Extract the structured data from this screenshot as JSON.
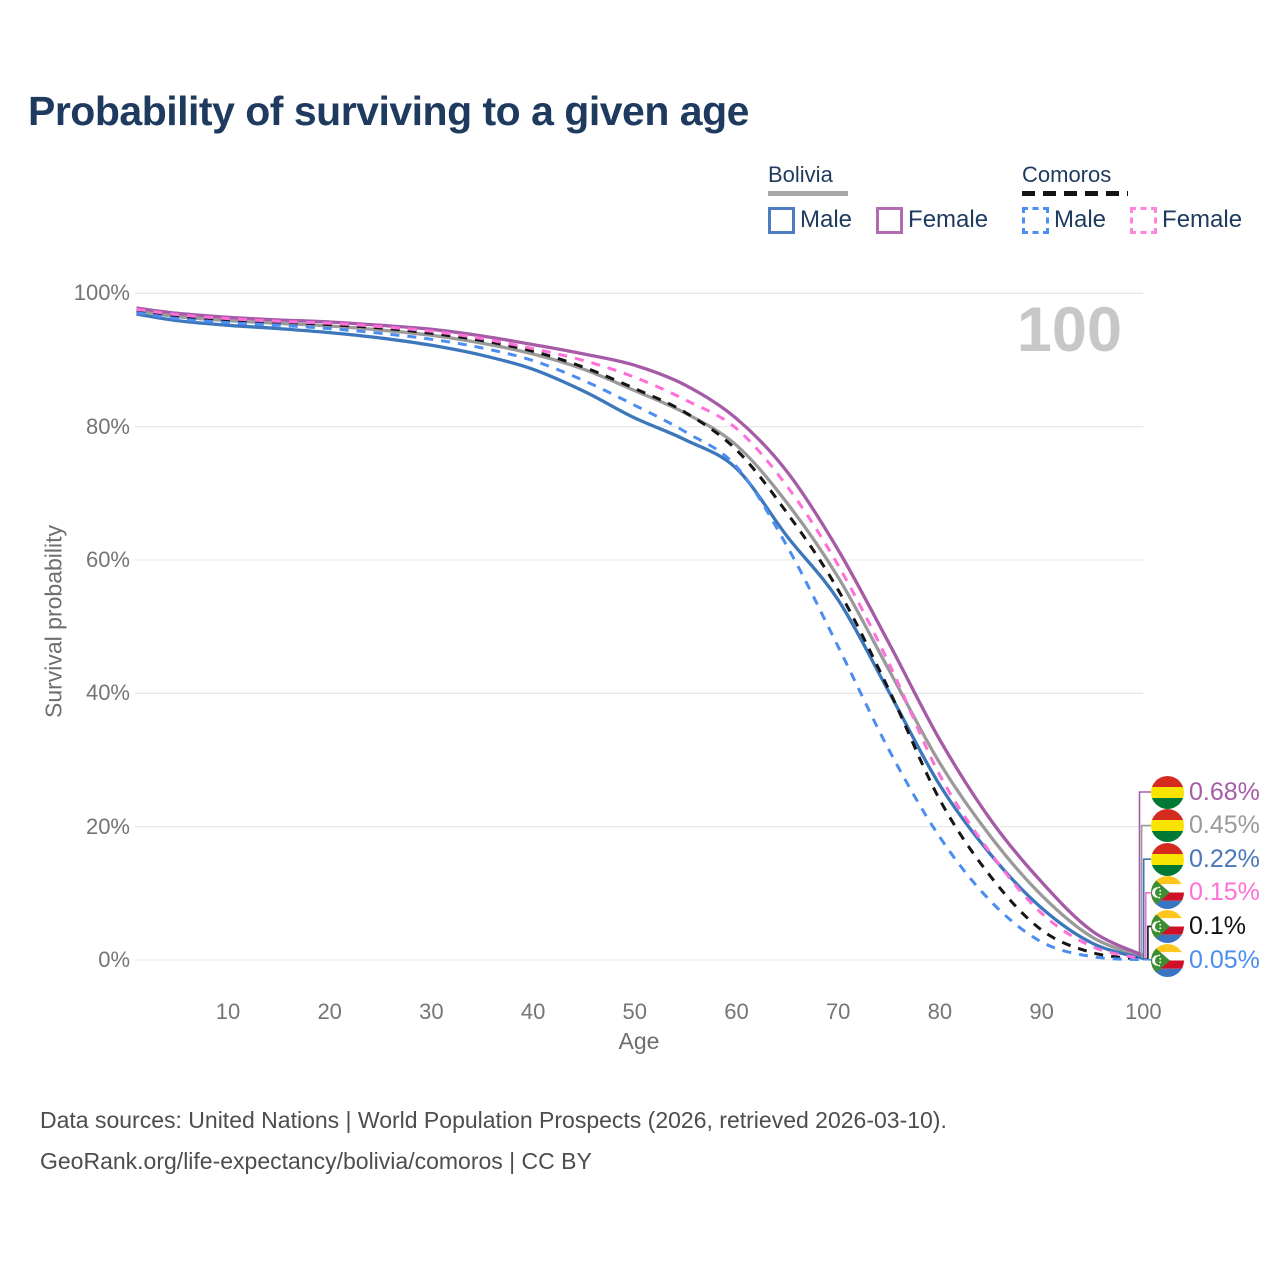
{
  "title": "Probability of surviving to a given age",
  "watermark": "100",
  "legend": {
    "groups": [
      {
        "id": "bolivia",
        "label": "Bolivia",
        "line_style": "solid",
        "line_color": "#a8a8a8",
        "items": [
          {
            "id": "bolivia-male",
            "label": "Male",
            "swatch_color": "#4e7ec1",
            "dash": false
          },
          {
            "id": "bolivia-female",
            "label": "Female",
            "swatch_color": "#b36ab0",
            "dash": false
          }
        ]
      },
      {
        "id": "comoros",
        "label": "Comoros",
        "line_style": "dashed",
        "line_color": "#141414",
        "items": [
          {
            "id": "comoros-male",
            "label": "Male",
            "swatch_color": "#4b8df0",
            "dash": true
          },
          {
            "id": "comoros-female",
            "label": "Female",
            "swatch_color": "#ff85dc",
            "dash": true
          }
        ]
      }
    ]
  },
  "axes": {
    "x": {
      "title": "Age",
      "tick_labels": [
        "10",
        "20",
        "30",
        "40",
        "50",
        "60",
        "70",
        "80",
        "90",
        "100"
      ],
      "tick_values": [
        10,
        20,
        30,
        40,
        50,
        60,
        70,
        80,
        90,
        100
      ],
      "range": [
        1,
        100
      ]
    },
    "y": {
      "title": "Survival probability",
      "tick_labels": [
        "0%",
        "20%",
        "40%",
        "60%",
        "80%",
        "100%"
      ],
      "tick_values": [
        0,
        20,
        40,
        60,
        80,
        100
      ],
      "range": [
        0,
        100
      ]
    }
  },
  "chart_data": {
    "type": "line",
    "title": "Probability of surviving to a given age",
    "xlabel": "Age",
    "ylabel": "Survival probability",
    "grid": "horizontal",
    "ylim": [
      0,
      100
    ],
    "xlim": [
      1,
      100
    ],
    "legend_position": "top-right",
    "x": [
      1,
      5,
      10,
      15,
      20,
      25,
      30,
      35,
      40,
      45,
      50,
      55,
      60,
      65,
      70,
      75,
      80,
      85,
      90,
      95,
      100
    ],
    "series": [
      {
        "id": "bolivia-both",
        "name": "Bolivia Both sexes",
        "country": "Bolivia",
        "sex": "both",
        "color": "#9a9a9a",
        "dash": false,
        "values": [
          97.4,
          96.5,
          95.9,
          95.5,
          95.1,
          94.5,
          93.7,
          92.5,
          90.9,
          88.6,
          85.4,
          82.0,
          77.2,
          68.5,
          57.4,
          43.5,
          29.5,
          18.5,
          9.7,
          3.4,
          0.45
        ]
      },
      {
        "id": "bolivia-male",
        "name": "Bolivia Male",
        "country": "Bolivia",
        "sex": "male",
        "color": "#3d77bb",
        "dash": false,
        "values": [
          96.9,
          95.9,
          95.2,
          94.7,
          94.1,
          93.3,
          92.2,
          90.7,
          88.6,
          85.3,
          81.3,
          78.0,
          73.7,
          63.5,
          54.0,
          40.2,
          26.2,
          15.8,
          7.8,
          2.5,
          0.22
        ]
      },
      {
        "id": "bolivia-female",
        "name": "Bolivia Female",
        "country": "Bolivia",
        "sex": "female",
        "color": "#a65ba6",
        "dash": false,
        "values": [
          97.8,
          97.0,
          96.4,
          96.0,
          95.7,
          95.2,
          94.6,
          93.6,
          92.3,
          90.9,
          89.2,
          86.2,
          81.2,
          73.2,
          61.5,
          47.5,
          33.0,
          21.0,
          11.7,
          4.3,
          0.68
        ]
      },
      {
        "id": "comoros-both",
        "name": "Comoros Both sexes",
        "country": "Comoros",
        "sex": "both",
        "color": "#151515",
        "dash": true,
        "values": [
          97.3,
          96.5,
          96.0,
          95.7,
          95.3,
          94.8,
          94.0,
          92.9,
          91.3,
          88.9,
          85.7,
          82.1,
          76.5,
          67.0,
          55.5,
          40.5,
          24.0,
          12.5,
          4.5,
          1.1,
          0.1
        ]
      },
      {
        "id": "comoros-male",
        "name": "Comoros Male",
        "country": "Comoros",
        "sex": "male",
        "color": "#4b8df0",
        "dash": true,
        "values": [
          97.1,
          96.2,
          95.6,
          95.2,
          94.7,
          94.0,
          93.1,
          91.8,
          89.9,
          86.9,
          83.2,
          79.2,
          74.0,
          62.0,
          47.0,
          31.5,
          18.4,
          8.8,
          2.7,
          0.5,
          0.05
        ]
      },
      {
        "id": "comoros-female",
        "name": "Comoros Female",
        "country": "Comoros",
        "sex": "female",
        "color": "#ff6fd8",
        "dash": true,
        "values": [
          97.6,
          96.8,
          96.2,
          95.8,
          95.5,
          95.0,
          94.3,
          93.2,
          91.7,
          89.9,
          87.4,
          84.0,
          79.7,
          71.0,
          59.2,
          44.5,
          27.7,
          16.0,
          7.0,
          2.0,
          0.15
        ]
      }
    ],
    "end_labels": [
      {
        "text": "0.68%",
        "series_id": "bolivia-female",
        "color": "#a65ba6",
        "flag": "bolivia"
      },
      {
        "text": "0.45%",
        "series_id": "bolivia-both",
        "color": "#9a9a9a",
        "flag": "bolivia"
      },
      {
        "text": "0.22%",
        "series_id": "bolivia-male",
        "color": "#4878b8",
        "flag": "bolivia"
      },
      {
        "text": "0.15%",
        "series_id": "comoros-female",
        "color": "#ff6fd8",
        "flag": "comoros"
      },
      {
        "text": "0.1%",
        "series_id": "comoros-both",
        "color": "#111111",
        "flag": "comoros"
      },
      {
        "text": "0.05%",
        "series_id": "comoros-male",
        "color": "#4b8df0",
        "flag": "comoros"
      }
    ]
  },
  "footer": {
    "line1": "Data sources: United Nations | World Population Prospects (2026, retrieved 2026-03-10).",
    "line2": "GeoRank.org/life-expectancy/bolivia/comoros | CC BY"
  },
  "colors": {
    "title_text": "#1e3a5f",
    "tick_text": "#757575",
    "axis_title_text": "#6f6f6f",
    "gridline": "#e9e9e9",
    "watermark": "#c7c7c7",
    "footer_text": "#4d4d4d",
    "flag_bolivia": [
      "#d52b1e",
      "#f9e300",
      "#007934"
    ],
    "flag_comoros_stripes": [
      "#ffc61e",
      "#ffffff",
      "#ce1126",
      "#3a75c4"
    ],
    "flag_comoros_triangle": "#3d8e33"
  }
}
